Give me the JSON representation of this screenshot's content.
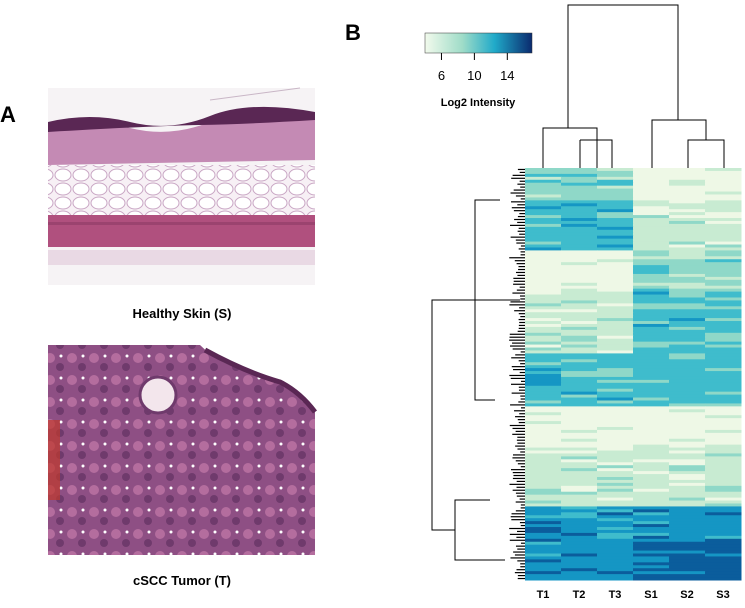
{
  "panel_a": {
    "label": "A",
    "images": [
      {
        "caption": "Healthy Skin (S)"
      },
      {
        "caption": "cSCC Tumor (T)"
      }
    ]
  },
  "panel_b": {
    "label": "B",
    "colorbar": {
      "ticks": [
        6,
        10,
        14
      ],
      "label": "Log2 Intensity"
    },
    "columns": [
      "T1",
      "T2",
      "T3",
      "S1",
      "S2",
      "S3"
    ]
  }
}
